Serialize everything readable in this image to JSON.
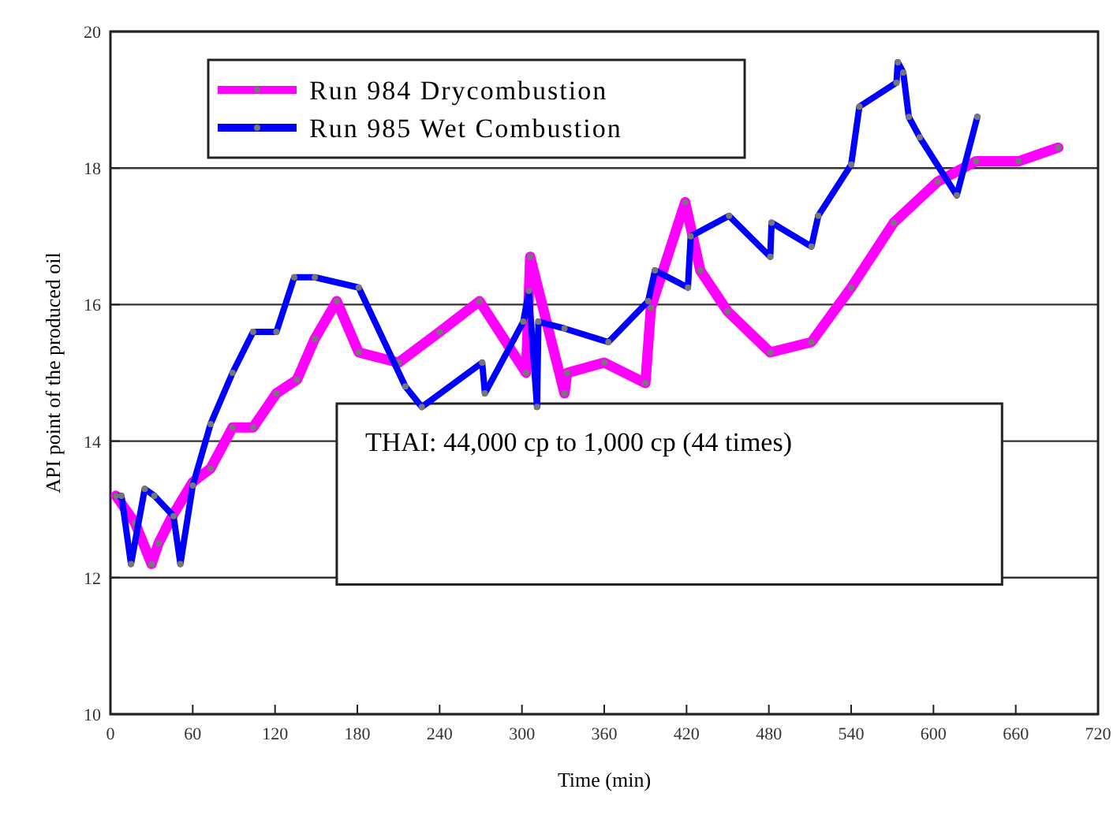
{
  "chart_data": {
    "type": "line",
    "xlabel": "Time (min)",
    "ylabel": "API point of the produced oil",
    "xlim": [
      0,
      720
    ],
    "xticks": [
      0,
      60,
      120,
      180,
      240,
      300,
      360,
      420,
      480,
      540,
      600,
      660,
      720
    ],
    "ylim": [
      10,
      20
    ],
    "yticks": [
      10,
      12,
      14,
      16,
      18,
      20
    ],
    "grid": "y",
    "legend": "top left",
    "marker": "circle",
    "line_style": "solid",
    "annotations": [
      "THAI: 44,000 cp to 1,000 cp (44 times)"
    ],
    "series": [
      {
        "name": "Run 984 Drycombustion",
        "color": "#ff00ff",
        "x": [
          4,
          18,
          30,
          35,
          45,
          60,
          73,
          89,
          104,
          121,
          136,
          149,
          165,
          181,
          210,
          240,
          269,
          303,
          306,
          331,
          333,
          360,
          390,
          394,
          419,
          430,
          450,
          481,
          511,
          540,
          571,
          603,
          631,
          662,
          691
        ],
        "values": [
          13.2,
          12.8,
          12.2,
          12.5,
          12.9,
          13.4,
          13.6,
          14.2,
          14.2,
          14.7,
          14.9,
          15.5,
          16.05,
          15.3,
          15.15,
          15.6,
          16.05,
          15.0,
          16.7,
          14.7,
          15.0,
          15.15,
          14.85,
          15.95,
          17.5,
          16.5,
          15.9,
          15.3,
          15.45,
          16.25,
          17.2,
          17.8,
          18.1,
          18.1,
          18.3
        ]
      },
      {
        "name": "Run 985 Wet Combustion",
        "color": "#0000ff",
        "x": [
          4,
          8,
          15,
          25,
          32,
          46,
          51,
          60,
          73,
          89,
          104,
          121,
          134,
          149,
          181,
          215,
          227,
          271,
          273,
          301,
          305,
          311,
          312,
          331,
          363,
          392,
          397,
          421,
          423,
          451,
          481,
          482,
          511,
          516,
          540,
          546,
          573,
          574,
          578,
          582,
          590,
          617,
          632
        ],
        "values": [
          13.2,
          13.2,
          12.2,
          13.3,
          13.2,
          12.9,
          12.2,
          13.35,
          14.25,
          15.0,
          15.6,
          15.6,
          16.4,
          16.4,
          16.25,
          14.8,
          14.5,
          15.15,
          14.7,
          15.75,
          16.2,
          14.5,
          15.75,
          15.65,
          15.45,
          16.05,
          16.5,
          16.25,
          17.0,
          17.3,
          16.7,
          17.2,
          16.85,
          17.3,
          18.05,
          18.9,
          19.25,
          19.55,
          19.4,
          18.75,
          18.45,
          17.6,
          18.75
        ]
      }
    ]
  }
}
